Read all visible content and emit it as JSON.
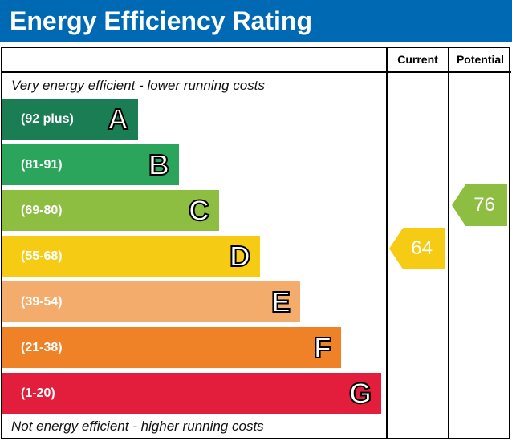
{
  "title": "Energy Efficiency Rating",
  "columns": {
    "current": "Current",
    "potential": "Potential"
  },
  "top_note": "Very energy efficient - lower running costs",
  "bottom_note": "Not energy efficient - higher running costs",
  "chart_data": {
    "type": "bar",
    "bands": [
      {
        "letter": "A",
        "range": "(92 plus)",
        "color": "#1a7d54"
      },
      {
        "letter": "B",
        "range": "(81-91)",
        "color": "#2ba55b"
      },
      {
        "letter": "C",
        "range": "(69-80)",
        "color": "#8dbd41"
      },
      {
        "letter": "D",
        "range": "(55-68)",
        "color": "#f5cb14"
      },
      {
        "letter": "E",
        "range": "(39-54)",
        "color": "#f3ac6c"
      },
      {
        "letter": "F",
        "range": "(21-38)",
        "color": "#ef8126"
      },
      {
        "letter": "G",
        "range": "(1-20)",
        "color": "#e31d3c"
      }
    ],
    "current": {
      "value": "64",
      "band": "D",
      "color": "#f5cb14"
    },
    "potential": {
      "value": "76",
      "band": "C",
      "color": "#8dbd41"
    }
  }
}
